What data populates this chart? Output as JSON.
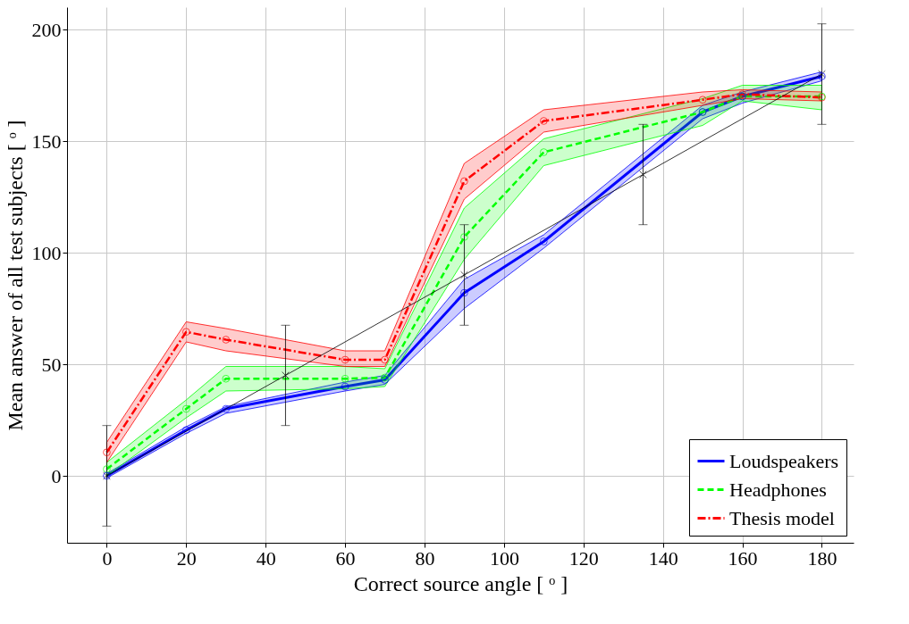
{
  "chart_data": {
    "type": "line",
    "xlabel": "Correct source angle [ ᵒ ]",
    "ylabel": "Mean answer of all test subjects [ ᵒ ]",
    "xlim": [
      -10,
      188
    ],
    "ylim": [
      -30,
      210
    ],
    "xticks": [
      0,
      20,
      40,
      60,
      80,
      100,
      120,
      140,
      160,
      180
    ],
    "yticks": [
      0,
      50,
      100,
      150,
      200
    ],
    "grid": true,
    "legend": "bottom right",
    "series": [
      {
        "name": "Loudspeakers",
        "color": "#0000ff",
        "line_style": "solid",
        "marker": "circle",
        "x": [
          0,
          20,
          30,
          60,
          70,
          90,
          110,
          150,
          160,
          180
        ],
        "values": [
          0,
          20.5,
          30,
          40,
          43,
          82,
          105,
          163,
          170,
          179
        ],
        "lower": [
          -1,
          19,
          28,
          38,
          41,
          75,
          102,
          160,
          167,
          177
        ],
        "upper": [
          1,
          22,
          31,
          42,
          45,
          88,
          108,
          166,
          172,
          181
        ]
      },
      {
        "name": "Headphones",
        "color": "#00ff00",
        "line_style": "dashed",
        "marker": "circle",
        "x": [
          0,
          20,
          30,
          60,
          70,
          90,
          110,
          150,
          160,
          180
        ],
        "values": [
          3,
          30,
          43.5,
          43.5,
          44,
          107,
          145,
          163,
          170,
          170
        ],
        "lower": [
          0,
          26,
          38,
          39,
          40,
          97,
          139,
          157,
          168,
          164
        ],
        "upper": [
          6,
          34,
          49,
          49,
          48,
          120,
          151,
          169,
          175,
          175
        ]
      },
      {
        "name": "Thesis model",
        "color": "#ff0000",
        "line_style": "dashdot",
        "marker": "circle",
        "x": [
          0,
          20,
          30,
          60,
          70,
          90,
          110,
          150,
          160,
          180
        ],
        "values": [
          10.5,
          64.5,
          61,
          52,
          52,
          132,
          159,
          168.5,
          171,
          169.5
        ],
        "lower": [
          6,
          60,
          56,
          49,
          49,
          124,
          154,
          166,
          169,
          168
        ],
        "upper": [
          15,
          69,
          66,
          56,
          56,
          140,
          164,
          172,
          173,
          172
        ]
      },
      {
        "color": "#000000",
        "line_style": "solid",
        "marker": "cross",
        "x": [
          0,
          45,
          90,
          135,
          180
        ],
        "values": [
          0,
          45,
          90,
          135,
          180
        ],
        "errors": [
          22.5,
          22.5,
          22.5,
          22.5,
          22.5
        ]
      }
    ]
  }
}
